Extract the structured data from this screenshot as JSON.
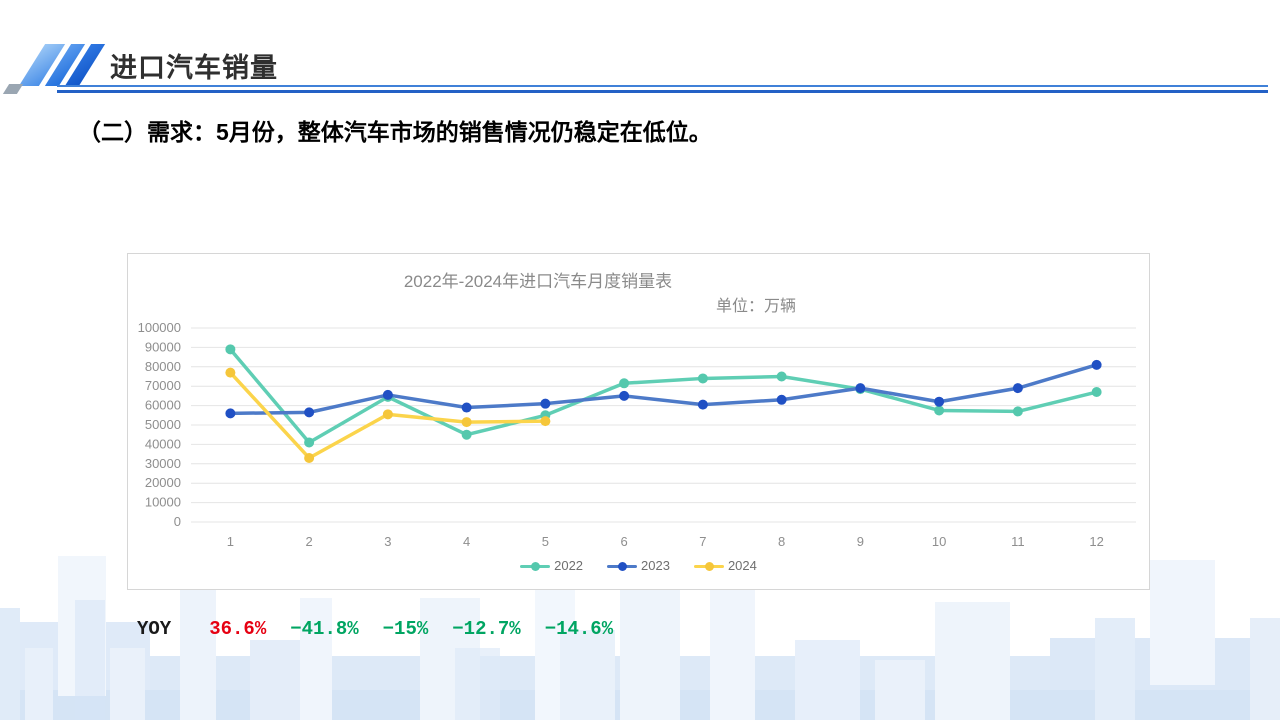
{
  "header": {
    "title": "进口汽车销量"
  },
  "subtitle": "（二）需求：5月份，整体汽车市场的销售情况仍稳定在低位。",
  "chart_data": {
    "type": "line",
    "title": "2022年-2024年进口汽车月度销量表",
    "unit_label": "单位：万辆",
    "categories": [
      "1",
      "2",
      "3",
      "4",
      "5",
      "6",
      "7",
      "8",
      "9",
      "10",
      "11",
      "12"
    ],
    "series": [
      {
        "name": "2022",
        "line_color": "#5fceb4",
        "marker_color": "#54c8ad",
        "values": [
          89000,
          41000,
          64500,
          45000,
          55000,
          71500,
          74000,
          75000,
          68500,
          57500,
          57000,
          67000
        ]
      },
      {
        "name": "2023",
        "line_color": "#4d7ac8",
        "marker_color": "#2050c4",
        "values": [
          56000,
          56500,
          65500,
          59000,
          61000,
          65000,
          60500,
          63000,
          69000,
          62000,
          69000,
          81000
        ]
      },
      {
        "name": "2024",
        "line_color": "#fbd44b",
        "marker_color": "#f5c63a",
        "values": [
          77000,
          33000,
          55500,
          51500,
          52000
        ]
      }
    ],
    "ylim": [
      0,
      100000
    ],
    "ytick_step": 10000,
    "grid": true,
    "legend_position": "bottom"
  },
  "yoy": {
    "label": "YOY",
    "values": [
      {
        "text": "36.6%",
        "color": "#e60012"
      },
      {
        "text": "−41.8%",
        "color": "#00a562"
      },
      {
        "text": "−15%",
        "color": "#00a562"
      },
      {
        "text": "−12.7%",
        "color": "#00a562"
      },
      {
        "text": "−14.6%",
        "color": "#00a562"
      }
    ]
  },
  "colors": {
    "header_rule": "#2361c6",
    "axis_text": "#8e8e8e",
    "gridline": "#e4e4e4"
  }
}
